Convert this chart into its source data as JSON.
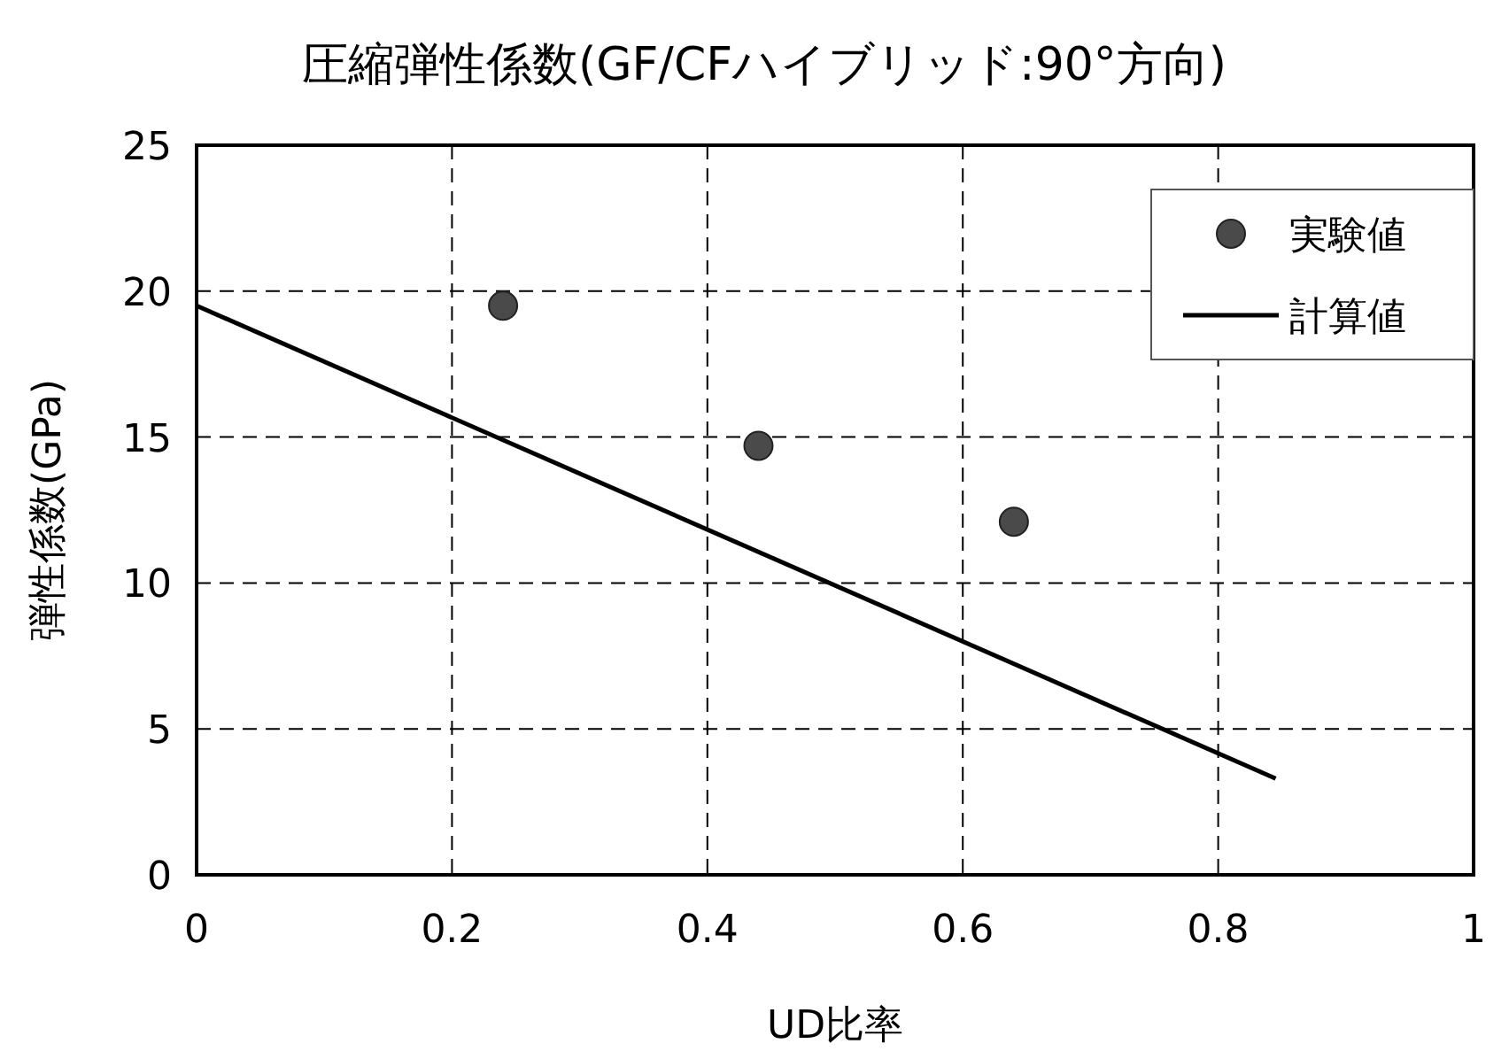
{
  "chart_data": {
    "type": "scatter",
    "title": "圧縮弾性係数(GF/CFハイブリッド:90°方向)",
    "xlabel": "UD比率",
    "ylabel": "弾性係数(GPa)",
    "xlim": [
      0,
      1
    ],
    "xticks": [
      0,
      0.2,
      0.4,
      0.6,
      0.8,
      1
    ],
    "ylim": [
      0,
      25
    ],
    "yticks": [
      0,
      5,
      10,
      15,
      20,
      25
    ],
    "grid": true,
    "legend": "top right",
    "series": [
      {
        "name": "実験値",
        "color": "#4a4a4a",
        "marker": "circle",
        "x": [
          0.24,
          0.44,
          0.64
        ],
        "values": [
          19.5,
          14.7,
          12.1
        ]
      },
      {
        "name": "計算値",
        "type": "line",
        "color": "#000000",
        "marker": "none",
        "line_style": "solid",
        "x": [
          0,
          0.845
        ],
        "values": [
          19.5,
          3.3
        ]
      }
    ]
  }
}
